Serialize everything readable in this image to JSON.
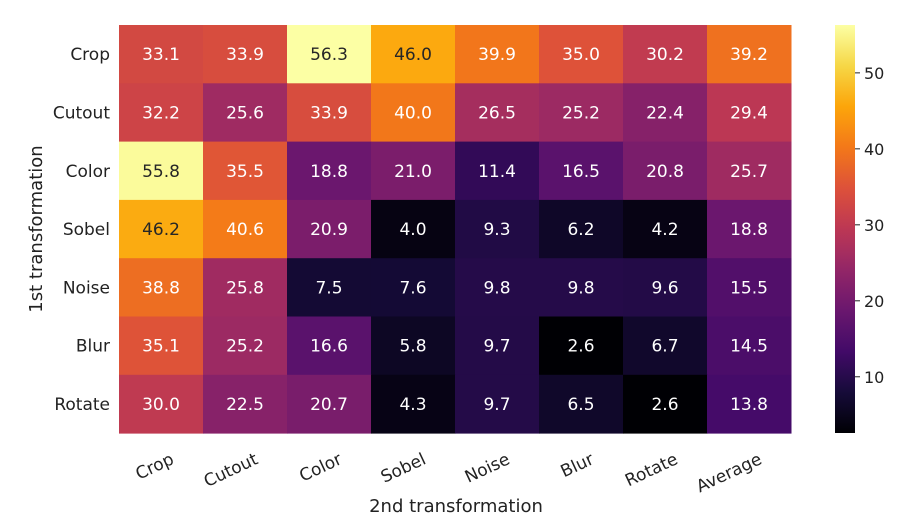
{
  "chart_data": {
    "type": "heatmap",
    "title": "",
    "xlabel": "2nd transformation",
    "ylabel": "1st transformation",
    "x_categories": [
      "Crop",
      "Cutout",
      "Color",
      "Sobel",
      "Noise",
      "Blur",
      "Rotate",
      "Average"
    ],
    "y_categories": [
      "Crop",
      "Cutout",
      "Color",
      "Sobel",
      "Noise",
      "Blur",
      "Rotate"
    ],
    "values": [
      [
        "33.1",
        "33.9",
        "56.3",
        "46.0",
        "39.9",
        "35.0",
        "30.2",
        "39.2"
      ],
      [
        "32.2",
        "25.6",
        "33.9",
        "40.0",
        "26.5",
        "25.2",
        "22.4",
        "29.4"
      ],
      [
        "55.8",
        "35.5",
        "18.8",
        "21.0",
        "11.4",
        "16.5",
        "20.8",
        "25.7"
      ],
      [
        "46.2",
        "40.6",
        "20.9",
        "4.0",
        "9.3",
        "6.2",
        "4.2",
        "18.8"
      ],
      [
        "38.8",
        "25.8",
        "7.5",
        "7.6",
        "9.8",
        "9.8",
        "9.6",
        "15.5"
      ],
      [
        "35.1",
        "25.2",
        "16.6",
        "5.8",
        "9.7",
        "2.6",
        "6.7",
        "14.5"
      ],
      [
        "30.0",
        "22.5",
        "20.7",
        "4.3",
        "9.7",
        "6.5",
        "2.6",
        "13.8"
      ]
    ],
    "colormap": "inferno",
    "colorbar": {
      "vmin": 2.6,
      "vmax": 56.3,
      "ticks": [
        10,
        20,
        30,
        40,
        50
      ],
      "tick_labels": [
        "10",
        "20",
        "30",
        "40",
        "50"
      ]
    },
    "annotations": true,
    "grid": false
  }
}
